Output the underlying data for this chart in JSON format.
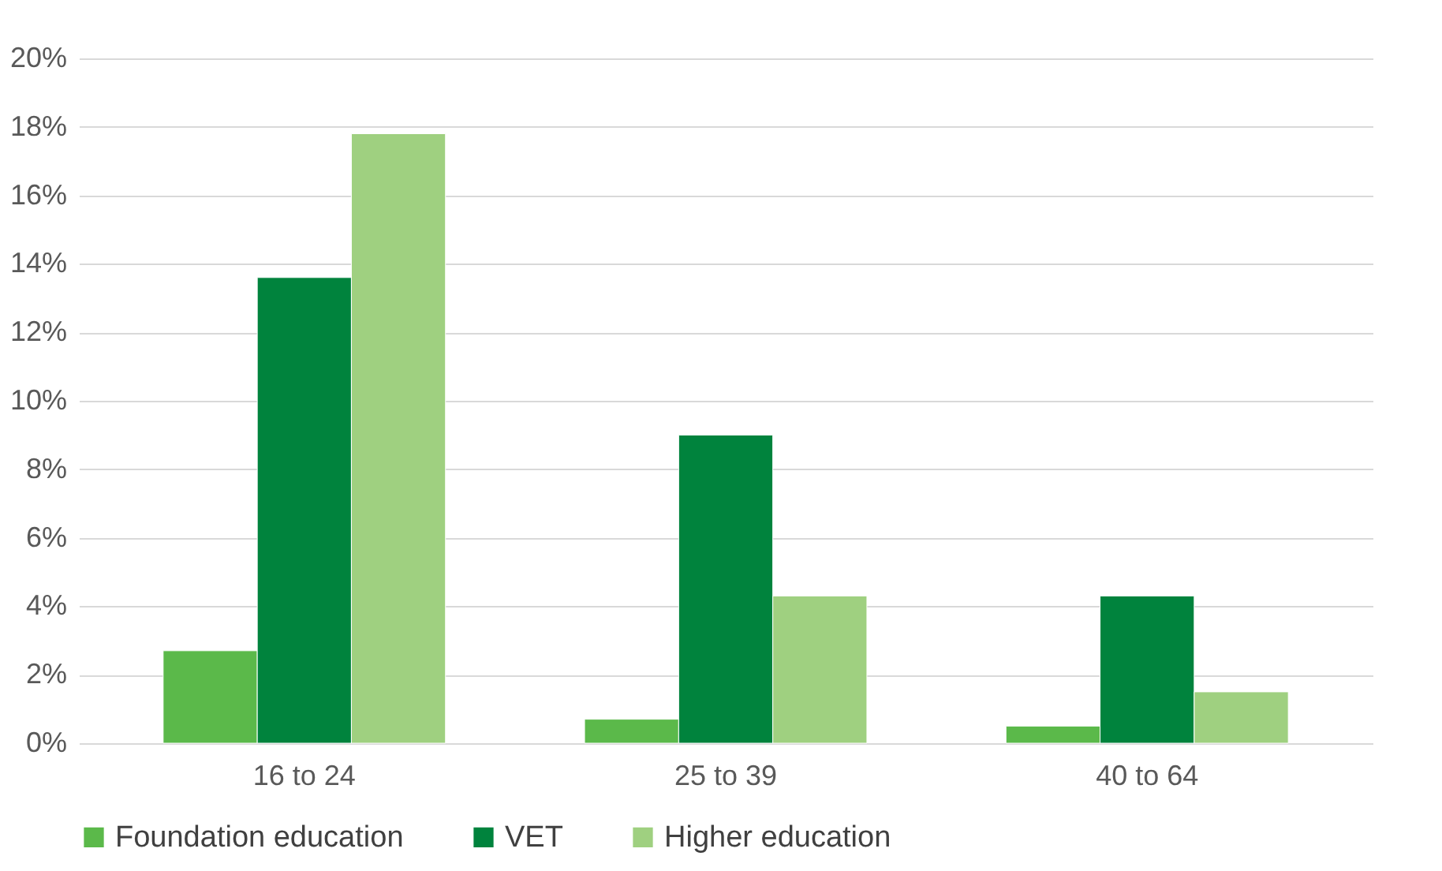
{
  "chart_data": {
    "type": "bar",
    "categories": [
      "16 to 24",
      "25 to 39",
      "40 to 64"
    ],
    "series": [
      {
        "name": "Foundation education",
        "color": "#5bb94a",
        "values": [
          2.7,
          0.7,
          0.5
        ]
      },
      {
        "name": "VET",
        "color": "#00833d",
        "values": [
          13.6,
          9.0,
          4.3
        ]
      },
      {
        "name": "Higher education",
        "color": "#9fd080",
        "values": [
          17.8,
          4.3,
          1.5
        ]
      }
    ],
    "ylim": [
      0,
      20
    ],
    "yticks": [
      {
        "value": 0,
        "label": "0%"
      },
      {
        "value": 2,
        "label": "2%"
      },
      {
        "value": 4,
        "label": "4%"
      },
      {
        "value": 6,
        "label": "6%"
      },
      {
        "value": 8,
        "label": "8%"
      },
      {
        "value": 10,
        "label": "10%"
      },
      {
        "value": 12,
        "label": "12%"
      },
      {
        "value": 14,
        "label": "14%"
      },
      {
        "value": 16,
        "label": "16%"
      },
      {
        "value": 18,
        "label": "18%"
      },
      {
        "value": 20,
        "label": "20%"
      }
    ],
    "grid": "y",
    "legend": "bottom"
  }
}
